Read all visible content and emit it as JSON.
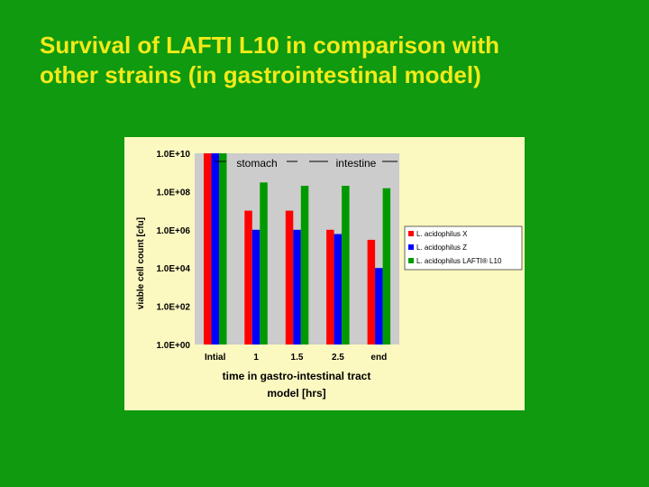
{
  "slide": {
    "title_line1": "Survival of LAFTI L10 in comparison with",
    "title_line2": "other strains (in gastrointestinal model)"
  },
  "colors": {
    "background": "#0f9a0f",
    "title": "#f2ea1a",
    "panel": "#fbf8c0",
    "plot_area": "#cccccc"
  },
  "chart_data": {
    "type": "bar",
    "categories": [
      "Intial",
      "1",
      "1.5",
      "2.5",
      "end"
    ],
    "series": [
      {
        "name": "L. acidophilus X",
        "color": "#ff0000",
        "values": [
          10000000000.0,
          10000000.0,
          10000000.0,
          1000000.0,
          300000.0
        ]
      },
      {
        "name": "L. acidophilus Z",
        "color": "#0000ff",
        "values": [
          10000000000.0,
          1000000.0,
          1000000.0,
          600000.0,
          10000.0
        ]
      },
      {
        "name": "L. acidophilus LAFTI® L10",
        "color": "#009a00",
        "values": [
          10000000000.0,
          300000000.0,
          200000000.0,
          200000000.0,
          150000000.0
        ]
      }
    ],
    "ylabel": "viable cell count [cfu]",
    "xlabel_line1": "time in gastro-intestinal tract",
    "xlabel_line2": "model [hrs]",
    "yscale": "log",
    "ylim": [
      1,
      10000000000.0
    ],
    "yticks": [
      "1.0E+00",
      "1.0E+02",
      "1.0E+04",
      "1.0E+06",
      "1.0E+08",
      "1.0E+10"
    ],
    "annotations": [
      "stomach",
      "intestine"
    ],
    "grid": false,
    "legend_position": "right"
  }
}
